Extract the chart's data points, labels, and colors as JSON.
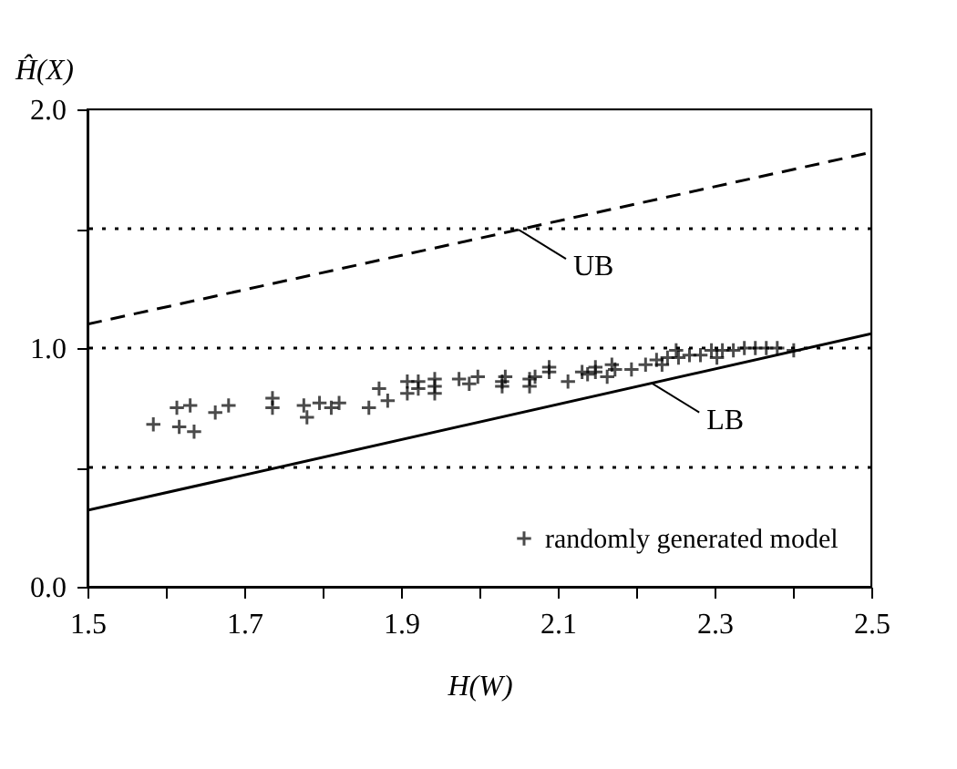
{
  "chart_data": {
    "type": "scatter",
    "xlabel": "H(W)",
    "ylabel": "Ĥ(X)",
    "xlim": [
      1.5,
      2.5
    ],
    "ylim": [
      0,
      2
    ],
    "xticks": [
      1.5,
      {
        "value": 1.6,
        "label": null
      },
      1.7,
      {
        "value": 1.8,
        "label": null
      },
      1.9,
      {
        "value": 2.0,
        "label": null
      },
      2.1,
      {
        "value": 2.2,
        "label": null
      },
      2.3,
      {
        "value": 2.4,
        "label": null
      },
      2.5
    ],
    "yticks": [
      {
        "value": 0,
        "label": "0.0"
      },
      {
        "value": 0.5,
        "label": null
      },
      {
        "value": 1,
        "label": "1.0"
      },
      {
        "value": 1.5,
        "label": null
      },
      {
        "value": 2,
        "label": "2.0"
      }
    ],
    "grid": false,
    "legend": "bottom right",
    "marker": "cross",
    "series": [
      {
        "name": "randomly generated model",
        "color": "#000000",
        "x": [
          1.584,
          1.614,
          1.631,
          1.617,
          1.636,
          1.663,
          1.68,
          1.736,
          1.736,
          1.776,
          1.78,
          1.796,
          1.811,
          1.821,
          1.859,
          1.872,
          1.883,
          1.908,
          1.908,
          1.922,
          1.922,
          1.943,
          1.943,
          1.943,
          1.974,
          1.987,
          1.998,
          2.029,
          2.033,
          2.029,
          2.064,
          2.064,
          2.071,
          2.089,
          2.089,
          2.113,
          2.131,
          2.138,
          2.148,
          2.148,
          2.163,
          2.169,
          2.173,
          2.194,
          2.212,
          2.226,
          2.233,
          2.24,
          2.251,
          2.254,
          2.268,
          2.282,
          2.296,
          2.303,
          2.31,
          2.324,
          2.338,
          2.352,
          2.366,
          2.38,
          2.401
        ],
        "values": [
          0.68,
          0.75,
          0.76,
          0.67,
          0.65,
          0.73,
          0.76,
          0.79,
          0.75,
          0.76,
          0.71,
          0.77,
          0.75,
          0.77,
          0.75,
          0.83,
          0.78,
          0.86,
          0.81,
          0.86,
          0.83,
          0.87,
          0.84,
          0.81,
          0.87,
          0.85,
          0.88,
          0.86,
          0.88,
          0.84,
          0.87,
          0.84,
          0.88,
          0.92,
          0.9,
          0.86,
          0.9,
          0.89,
          0.92,
          0.9,
          0.88,
          0.93,
          0.91,
          0.91,
          0.93,
          0.95,
          0.93,
          0.96,
          0.99,
          0.96,
          0.97,
          0.97,
          0.99,
          0.96,
          0.99,
          0.99,
          1.0,
          1.0,
          1.0,
          1.0,
          0.99
        ]
      },
      {
        "name": "UB",
        "type": "line",
        "line_style": "dashed",
        "marker": "none",
        "color": "#000000",
        "x": [
          1.5,
          2.5
        ],
        "values": [
          1.1,
          1.82
        ]
      },
      {
        "name": "LB",
        "type": "line",
        "line_style": "solid",
        "marker": "none",
        "color": "#000000",
        "x": [
          1.5,
          2.5
        ],
        "values": [
          0.32,
          1.06
        ]
      }
    ],
    "ref_lines": [
      {
        "axis": "y",
        "value": 0.5,
        "line_style": "dotted",
        "color": "#000000"
      },
      {
        "axis": "y",
        "value": 1.0,
        "line_style": "dotted",
        "color": "#000000"
      },
      {
        "axis": "y",
        "value": 1.5,
        "line_style": "dotted",
        "color": "#000000"
      }
    ]
  }
}
